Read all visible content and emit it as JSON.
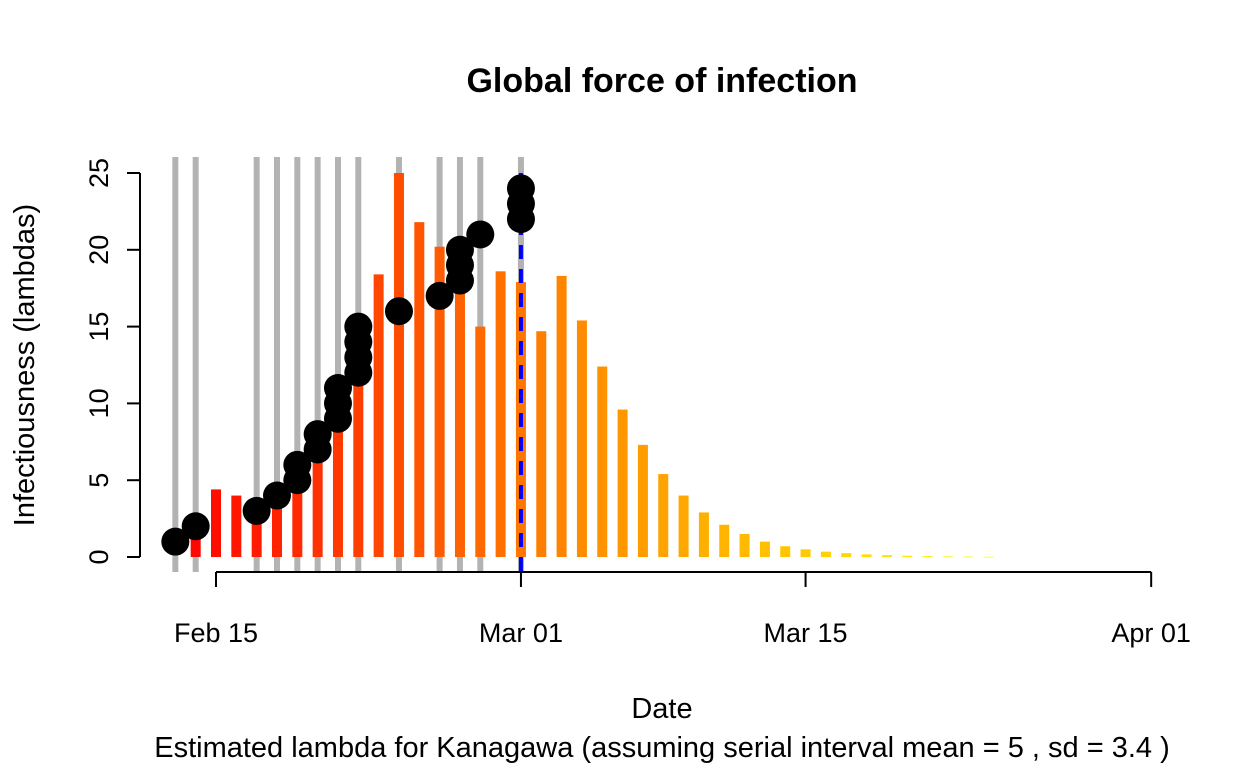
{
  "chart_data": {
    "type": "bar",
    "title": "Global force of infection",
    "xlabel": "Date",
    "ylabel": "Infectiousness (lambdas)",
    "subtitle": "Estimated lambda for Kanagawa (assuming serial interval mean = 5 , sd = 3.4 )",
    "ylim": [
      0,
      25
    ],
    "y_ticks": [
      "0",
      "5",
      "10",
      "15",
      "20",
      "25"
    ],
    "x_ticks": [
      {
        "label": "Feb 15",
        "day": 0
      },
      {
        "label": "Mar 01",
        "day": 15
      },
      {
        "label": "Mar 15",
        "day": 29
      },
      {
        "label": "Apr 01",
        "day": 46
      }
    ],
    "x_range_days": [
      -3,
      47
    ],
    "lambda_bars": {
      "start_day": -2,
      "values": [
        0,
        1.7,
        4.4,
        4.0,
        3.3,
        3.5,
        5.5,
        7.5,
        10.2,
        13.4,
        18.4,
        25.0,
        21.8,
        20.2,
        17.5,
        15.0,
        18.6,
        17.9,
        14.7,
        18.3,
        15.4,
        12.4,
        9.6,
        7.3,
        5.4,
        4.0,
        2.9,
        2.1,
        1.5,
        1.0,
        0.7,
        0.5,
        0.35,
        0.25,
        0.17,
        0.12,
        0.08,
        0.06,
        0.04,
        0.03,
        0.02
      ]
    },
    "case_days": [
      -2,
      -1,
      2,
      3,
      4,
      5,
      6,
      7,
      9,
      11,
      12,
      13,
      15
    ],
    "cumulative_points": [
      {
        "day": -2,
        "cases": [
          1
        ]
      },
      {
        "day": -1,
        "cases": [
          2
        ]
      },
      {
        "day": 2,
        "cases": [
          3
        ]
      },
      {
        "day": 3,
        "cases": [
          4
        ]
      },
      {
        "day": 4,
        "cases": [
          5,
          6
        ]
      },
      {
        "day": 5,
        "cases": [
          7,
          8
        ]
      },
      {
        "day": 6,
        "cases": [
          9,
          10,
          11
        ]
      },
      {
        "day": 7,
        "cases": [
          12,
          13,
          14,
          15
        ]
      },
      {
        "day": 9,
        "cases": [
          16
        ]
      },
      {
        "day": 11,
        "cases": [
          17
        ]
      },
      {
        "day": 12,
        "cases": [
          18,
          19,
          20
        ]
      },
      {
        "day": 13,
        "cases": [
          21
        ]
      },
      {
        "day": 15,
        "cases": [
          22,
          23,
          24
        ]
      }
    ],
    "current_day": 15,
    "colors": {
      "case_lines": "#b3b3b3",
      "current_date_line": "#0000ff",
      "points": "#000000",
      "bar_gradient": [
        "#ff0000",
        "#ff8c00",
        "#ffff00"
      ]
    }
  }
}
